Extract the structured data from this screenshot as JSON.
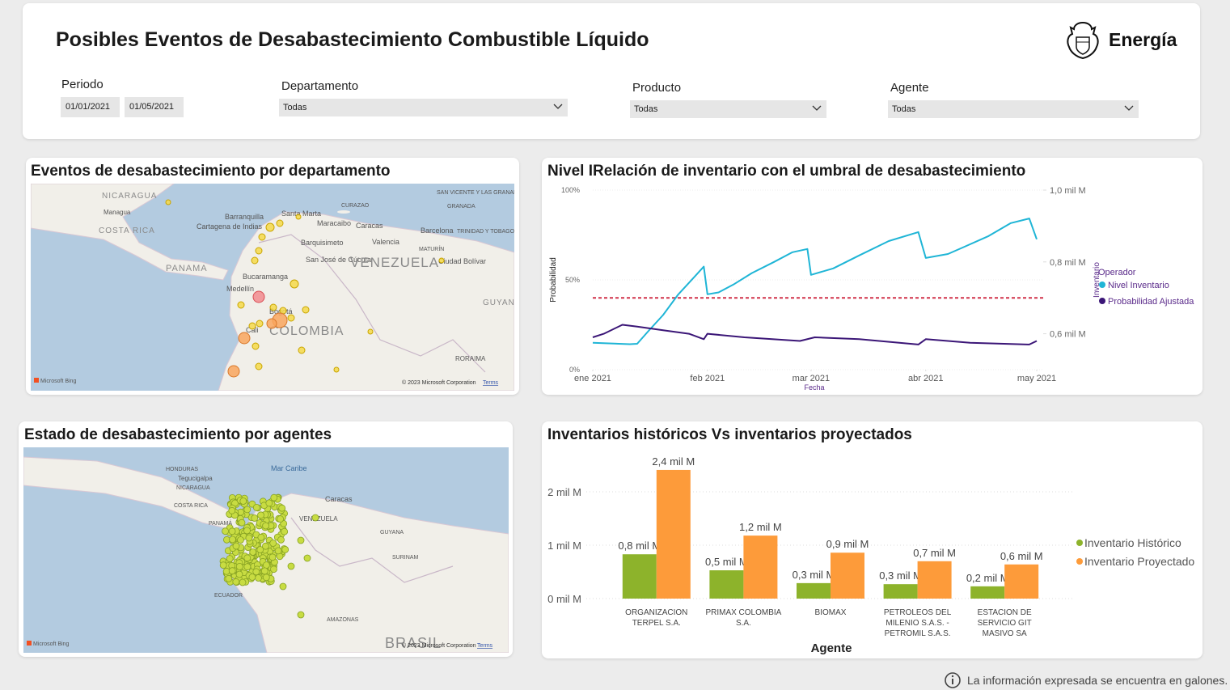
{
  "header": {
    "title": "Posibles Eventos de Desabastecimiento Combustible Líquido",
    "logo": "Energía"
  },
  "filters": {
    "periodo": {
      "label": "Periodo",
      "start": "01/01/2021",
      "end": "01/05/2021"
    },
    "departamento": {
      "label": "Departamento",
      "value": "Todas"
    },
    "producto": {
      "label": "Producto",
      "value": "Todas"
    },
    "agente": {
      "label": "Agente",
      "value": "Todas"
    }
  },
  "maps": [
    {
      "title": "Eventos de desabastecimiento por departamento",
      "labels": [
        "NICARAGUA",
        "Managua",
        "COSTA RICA",
        "PANAMA",
        "Barranquilla",
        "Cartagena de Indias",
        "Santa Marta",
        "CURAZAO",
        "Maracaibo",
        "Caracas",
        "Barcelona",
        "TRINIDAD Y TOBAGO",
        "SAN VICENTE Y LAS GRANADINAS",
        "GRANADA",
        "Barquisimeto",
        "Valencia",
        "San José de Cúcuta",
        "VENEZUELA",
        "Ciudad Bolívar",
        "MATURÍN",
        "Bucaramanga",
        "Medellín",
        "Bogotá",
        "Cali",
        "COLOMBIA",
        "GUYANA",
        "RORAIMA"
      ],
      "brand": "Microsoft Bing",
      "attribution": "© 2023 Microsoft Corporation",
      "terms": "Terms"
    },
    {
      "title": "Estado de desabastecimiento por agentes",
      "labels": [
        "Mar Caribe",
        "HONDURAS",
        "Tegucigalpa",
        "NICARAGUA",
        "COSTA RICA",
        "PANAMÁ",
        "Caracas",
        "VENEZUELA",
        "GUYANA",
        "SURINAM",
        "ECUADOR",
        "AMAZONAS",
        "BRASIL"
      ],
      "brand": "Microsoft Bing",
      "attribution": "© 2023 Microsoft Corporation",
      "terms": "Terms"
    }
  ],
  "chart_data": [
    {
      "type": "line",
      "title": "Nivel IRelación de inventario con el umbral de desabastecimiento",
      "x_label": "Fecha",
      "y_label": "Probabilidad",
      "y2_label": "Inventario",
      "legend_title": "Operador",
      "xlim": [
        0,
        120
      ],
      "xticks": [
        {
          "value": 0,
          "label": "ene 2021"
        },
        {
          "value": 31,
          "label": "feb 2021"
        },
        {
          "value": 59,
          "label": "mar 2021"
        },
        {
          "value": 90,
          "label": "abr 2021"
        },
        {
          "value": 120,
          "label": "may 2021"
        }
      ],
      "ylim": [
        0,
        100
      ],
      "yticks": [
        {
          "value": 0,
          "label": "0%"
        },
        {
          "value": 50,
          "label": "50%"
        },
        {
          "value": 100,
          "label": "100%"
        }
      ],
      "y2lim": [
        0.5,
        1.0
      ],
      "y2ticks": [
        {
          "value": 0.6,
          "label": "0,6 mil M"
        },
        {
          "value": 0.8,
          "label": "0,8 mil M"
        },
        {
          "value": 1.0,
          "label": "1,0 mil M"
        }
      ],
      "threshold": 0.7,
      "threshold_color": "#d0324a",
      "grid": true,
      "legend": "right",
      "series": [
        {
          "name": "Nivel Inventario",
          "color": "#1fb5d6",
          "axis": "y2",
          "x": [
            0,
            10,
            12,
            15,
            19,
            23,
            27,
            30,
            31,
            34,
            38,
            43,
            49,
            54,
            58,
            59,
            65,
            72,
            80,
            88,
            90,
            96,
            100,
            107,
            113,
            118,
            120
          ],
          "values": [
            0.575,
            0.571,
            0.572,
            0.607,
            0.652,
            0.708,
            0.753,
            0.787,
            0.71,
            0.715,
            0.737,
            0.769,
            0.8,
            0.827,
            0.836,
            0.764,
            0.782,
            0.818,
            0.858,
            0.883,
            0.811,
            0.822,
            0.84,
            0.872,
            0.908,
            0.921,
            0.863
          ]
        },
        {
          "name": "Probabilidad Ajustada",
          "color": "#3b1677",
          "axis": "y",
          "x": [
            0,
            3,
            8,
            12,
            19,
            26,
            30,
            31,
            41,
            56,
            60,
            72,
            88,
            90,
            102,
            118,
            120
          ],
          "values": [
            18,
            20,
            25,
            24,
            22,
            20,
            17,
            20,
            18,
            16,
            18,
            17,
            14,
            17,
            15,
            14,
            16
          ]
        }
      ]
    },
    {
      "type": "bar",
      "title": "Inventarios históricos Vs inventarios proyectados",
      "x_label": "Agente",
      "categories": [
        "ORGANIZACION TERPEL S.A.",
        "PRIMAX COLOMBIA S.A.",
        "BIOMAX",
        "PETROLEOS DEL MILENIO S.A.S. - PETROMIL S.A.S.",
        "ESTACION DE SERVICIO GIT MASIVO SA"
      ],
      "ylim": [
        0,
        2.5
      ],
      "yticks": [
        {
          "value": 0,
          "label": "0 mil M"
        },
        {
          "value": 1,
          "label": "1 mil M"
        },
        {
          "value": 2,
          "label": "2 mil M"
        }
      ],
      "grid": true,
      "legend": "right",
      "series": [
        {
          "name": "Inventario Histórico",
          "color": "#8db32b",
          "values": [
            0.83,
            0.53,
            0.29,
            0.27,
            0.23
          ],
          "value_labels": [
            "0,8 mil M",
            "0,5 mil M",
            "0,3 mil M",
            "0,3 mil M",
            "0,2 mil M"
          ]
        },
        {
          "name": "Inventario Proyectado",
          "color": "#fd9b3a",
          "values": [
            2.41,
            1.18,
            0.86,
            0.7,
            0.64
          ],
          "value_labels": [
            "2,4 mil M",
            "1,2 mil M",
            "0,9 mil M",
            "0,7 mil M",
            "0,6 mil M"
          ]
        }
      ]
    }
  ],
  "footer": {
    "note": "La información expresada se encuentra en galones."
  }
}
